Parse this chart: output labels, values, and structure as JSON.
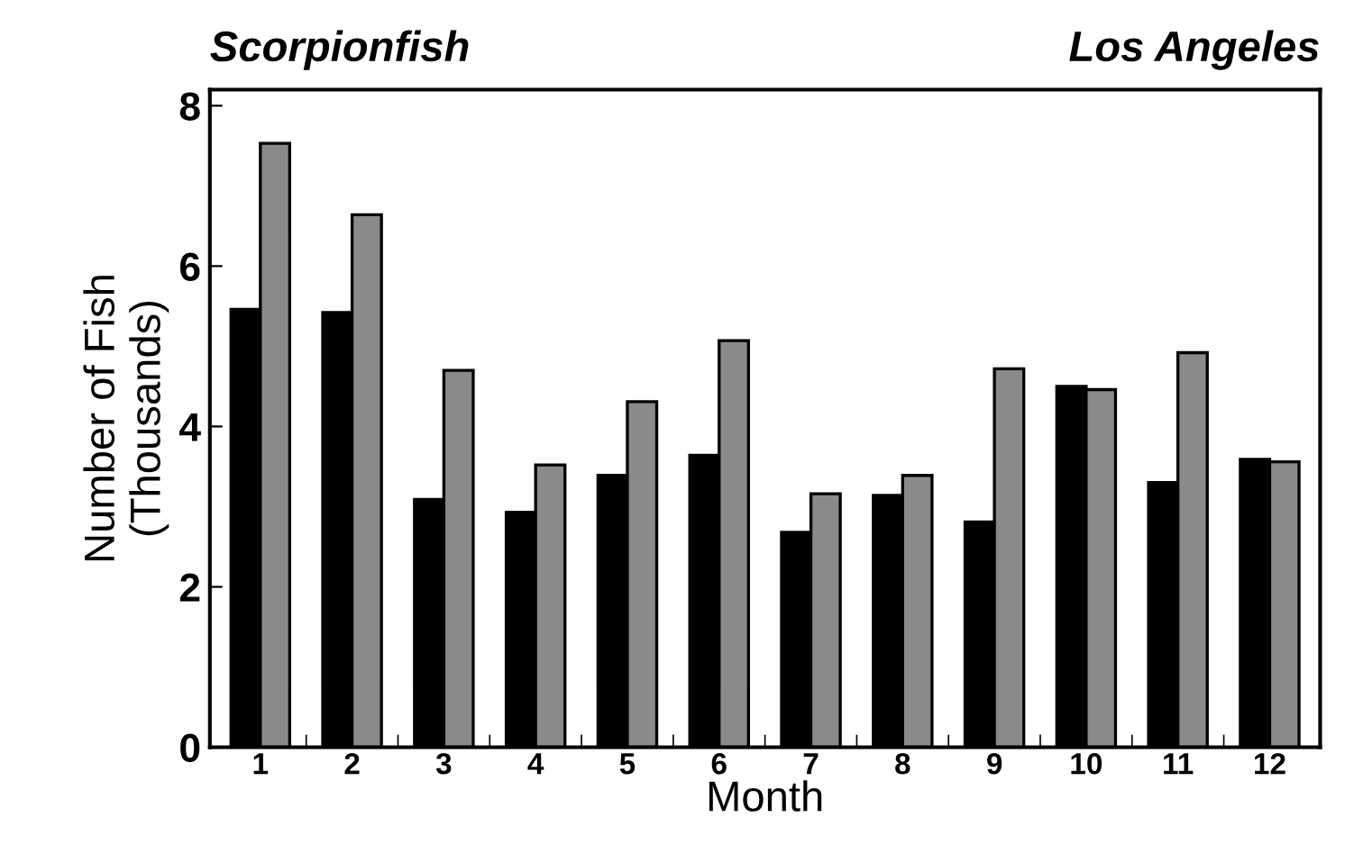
{
  "chart_data": {
    "type": "bar",
    "title": "Scorpionfish",
    "subtitle": "Los Angeles",
    "xlabel": "Month",
    "ylabel": "Number of Fish\n(Thousands)",
    "categories": [
      "1",
      "2",
      "3",
      "4",
      "5",
      "6",
      "7",
      "8",
      "9",
      "10",
      "11",
      "12"
    ],
    "series": [
      {
        "color": "#000000",
        "values": [
          5.46,
          5.42,
          3.09,
          2.93,
          3.39,
          3.64,
          2.68,
          3.14,
          2.81,
          4.5,
          3.3,
          3.59
        ]
      },
      {
        "color": "#8a8a8a",
        "values": [
          7.53,
          6.64,
          4.7,
          3.52,
          4.31,
          5.07,
          3.16,
          3.39,
          4.72,
          4.46,
          4.92,
          3.56
        ]
      }
    ],
    "ylim": [
      0,
      8.2
    ],
    "yticks": [
      0,
      2,
      4,
      6,
      8
    ],
    "grid": false,
    "legend": false
  }
}
